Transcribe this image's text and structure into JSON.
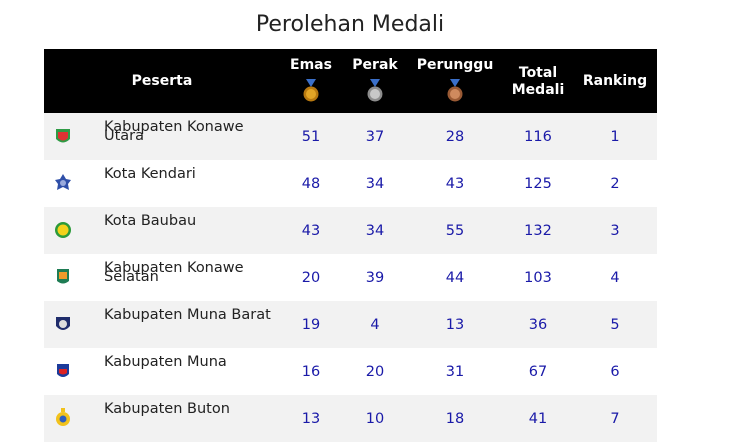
{
  "title": "Perolehan Medali",
  "table": {
    "headers": [
      "Peserta",
      "Emas",
      "Perak",
      "Perunggu",
      "Total Medali",
      "Ranking"
    ],
    "rows": [
      [
        "Kabupaten Konawe Utara",
        "51",
        "37",
        "28",
        "116",
        "1"
      ],
      [
        "Kota Kendari",
        "48",
        "34",
        "43",
        "125",
        "2"
      ],
      [
        "Kota Baubau",
        "43",
        "34",
        "55",
        "132",
        "3"
      ],
      [
        "Kabupaten Konawe Selatan",
        "20",
        "39",
        "44",
        "103",
        "4"
      ],
      [
        "Kabupaten Muna Barat",
        "19",
        "4",
        "13",
        "36",
        "5"
      ],
      [
        "Kabupaten Muna",
        "16",
        "20",
        "31",
        "67",
        "6"
      ],
      [
        "Kabupaten Buton",
        "13",
        "10",
        "18",
        "41",
        "7"
      ]
    ]
  }
}
